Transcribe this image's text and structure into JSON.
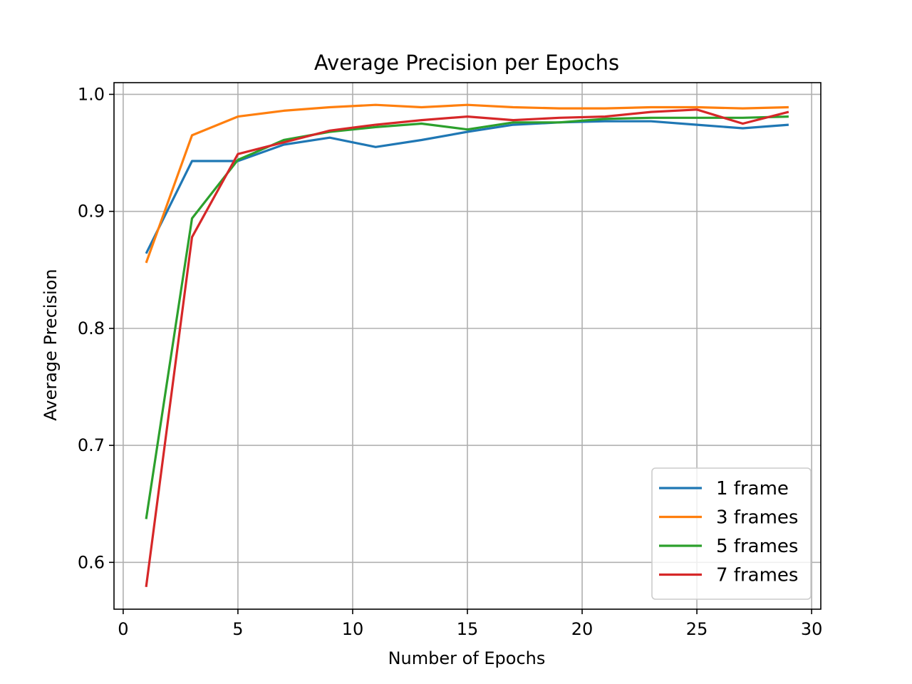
{
  "chart_data": {
    "type": "line",
    "title": "Average Precision per Epochs",
    "xlabel": "Number of Epochs",
    "ylabel": "Average Precision",
    "xlim": [
      -0.4,
      30.4
    ],
    "ylim": [
      0.56,
      1.01
    ],
    "x_ticks": [
      0,
      5,
      10,
      15,
      20,
      25,
      30
    ],
    "x_tick_labels": [
      "0",
      "5",
      "10",
      "15",
      "20",
      "25",
      "30"
    ],
    "y_ticks": [
      0.6,
      0.7,
      0.8,
      0.9,
      1.0
    ],
    "y_tick_labels": [
      "0.6",
      "0.7",
      "0.8",
      "0.9",
      "1.0"
    ],
    "grid": true,
    "legend_position": "lower-right",
    "x": [
      1,
      3,
      5,
      7,
      9,
      11,
      13,
      15,
      17,
      19,
      21,
      23,
      25,
      27,
      29
    ],
    "series": [
      {
        "name": "1 frame",
        "color": "#1f77b4",
        "values": [
          0.864,
          0.943,
          0.943,
          0.957,
          0.963,
          0.955,
          0.961,
          0.968,
          0.974,
          0.976,
          0.977,
          0.977,
          0.974,
          0.971,
          0.974
        ]
      },
      {
        "name": "3 frames",
        "color": "#ff7f0e",
        "values": [
          0.856,
          0.965,
          0.981,
          0.986,
          0.989,
          0.991,
          0.989,
          0.991,
          0.989,
          0.988,
          0.988,
          0.989,
          0.989,
          0.988,
          0.989
        ]
      },
      {
        "name": "5 frames",
        "color": "#2ca02c",
        "values": [
          0.637,
          0.894,
          0.944,
          0.961,
          0.968,
          0.972,
          0.975,
          0.97,
          0.976,
          0.976,
          0.979,
          0.98,
          0.98,
          0.98,
          0.981
        ]
      },
      {
        "name": "7 frames",
        "color": "#d62728",
        "values": [
          0.579,
          0.878,
          0.949,
          0.959,
          0.969,
          0.974,
          0.978,
          0.981,
          0.978,
          0.98,
          0.981,
          0.985,
          0.987,
          0.975,
          0.985
        ]
      }
    ]
  }
}
